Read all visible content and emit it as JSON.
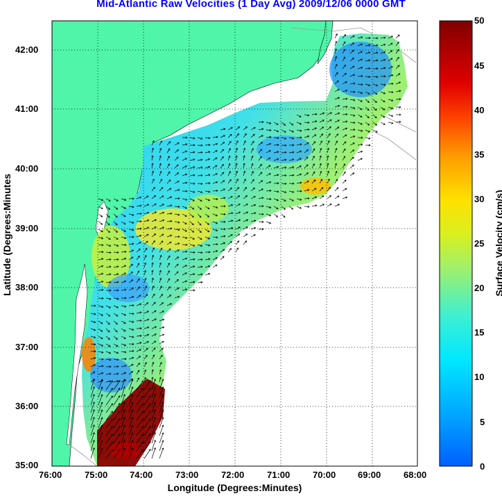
{
  "title": "Mid-Atlantic Raw Velocities (1 Day Avg) 2009/12/06 0000 GMT",
  "axes": {
    "xlabel": "Longitude (Degrees:Minutes)",
    "ylabel": "Latitude (Degrees:Minutes",
    "xticks": [
      "76:00",
      "75:00",
      "74:00",
      "73:00",
      "72:00",
      "71:00",
      "70:00",
      "69:00",
      "68:00"
    ],
    "yticks": [
      "42:00",
      "41:00",
      "40:00",
      "39:00",
      "38:00",
      "37:00",
      "36:00",
      "35:00"
    ]
  },
  "colorbar": {
    "label": "Surface Velocity (cm/s)",
    "ticks": [
      "50",
      "45",
      "40",
      "35",
      "30",
      "25",
      "20",
      "15",
      "10",
      "5",
      "0"
    ],
    "min": 0,
    "max": 50
  },
  "colors": {
    "land": "#4ff5a8",
    "title": "#0000ff",
    "grid": "#000000"
  }
}
